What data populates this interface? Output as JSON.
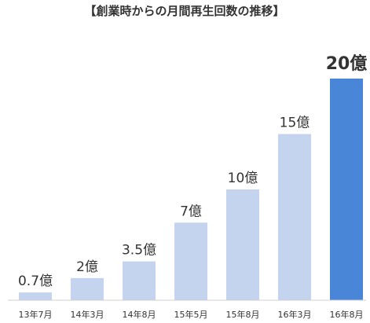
{
  "chart_data": {
    "type": "bar",
    "title": "【創業時からの月間再生回数の推移】",
    "xlabel": "",
    "ylabel": "",
    "categories": [
      "13年7月",
      "14年3月",
      "14年8月",
      "15年5月",
      "15年8月",
      "16年3月",
      "16年8月"
    ],
    "values": [
      0.7,
      2,
      3.5,
      7,
      10,
      15,
      20
    ],
    "value_labels": [
      "0.7億",
      "2億",
      "3.5億",
      "7億",
      "10億",
      "15億",
      "20億"
    ],
    "ylim": [
      0,
      20
    ],
    "grid": false,
    "legend": "none",
    "highlight_index": 6,
    "colors": {
      "bar": "#c4d4ef",
      "bar_highlight": "#4a86d8",
      "baseline": "#d0d0d0",
      "text": "#333333"
    }
  }
}
